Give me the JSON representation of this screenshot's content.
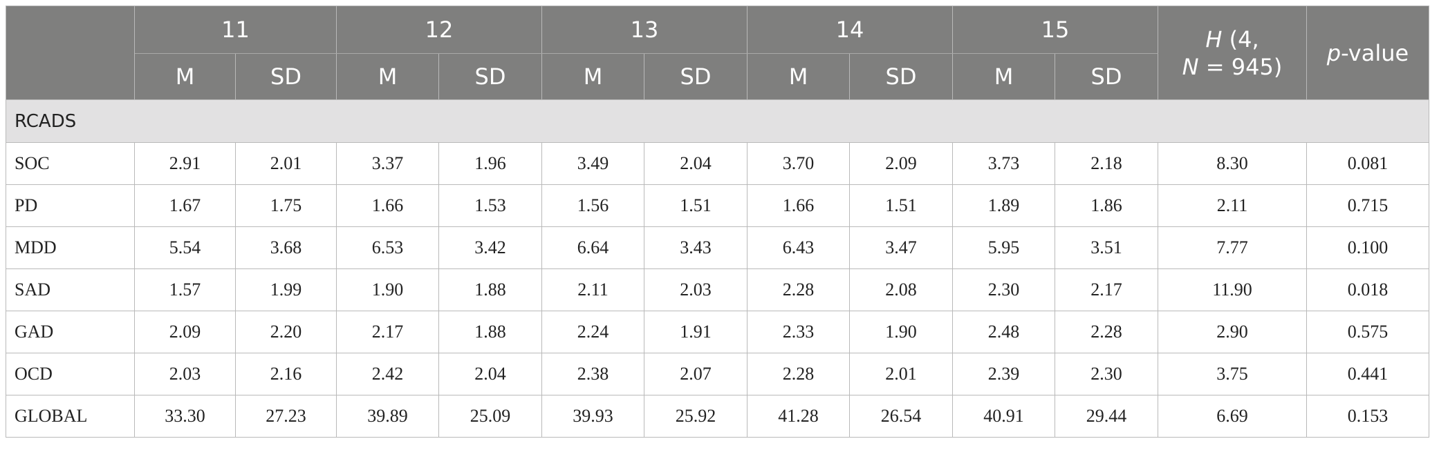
{
  "header": {
    "empty_corner": "",
    "groups": [
      "11",
      "12",
      "13",
      "14",
      "15"
    ],
    "sub": [
      "M",
      "SD"
    ],
    "h_stat": {
      "italic": "H",
      "line1_rest": " (4,",
      "n_italic": "N",
      "line2_rest": " = 945)"
    },
    "p_value": {
      "italic": "p",
      "rest": "-value"
    }
  },
  "section_label": "RCADS",
  "rows": [
    {
      "label": "SOC",
      "cells": [
        "2.91",
        "2.01",
        "3.37",
        "1.96",
        "3.49",
        "2.04",
        "3.70",
        "2.09",
        "3.73",
        "2.18",
        "8.30",
        "0.081"
      ]
    },
    {
      "label": "PD",
      "cells": [
        "1.67",
        "1.75",
        "1.66",
        "1.53",
        "1.56",
        "1.51",
        "1.66",
        "1.51",
        "1.89",
        "1.86",
        "2.11",
        "0.715"
      ]
    },
    {
      "label": "MDD",
      "cells": [
        "5.54",
        "3.68",
        "6.53",
        "3.42",
        "6.64",
        "3.43",
        "6.43",
        "3.47",
        "5.95",
        "3.51",
        "7.77",
        "0.100"
      ]
    },
    {
      "label": "SAD",
      "cells": [
        "1.57",
        "1.99",
        "1.90",
        "1.88",
        "2.11",
        "2.03",
        "2.28",
        "2.08",
        "2.30",
        "2.17",
        "11.90",
        "0.018"
      ]
    },
    {
      "label": "GAD",
      "cells": [
        "2.09",
        "2.20",
        "2.17",
        "1.88",
        "2.24",
        "1.91",
        "2.33",
        "1.90",
        "2.48",
        "2.28",
        "2.90",
        "0.575"
      ]
    },
    {
      "label": "OCD",
      "cells": [
        "2.03",
        "2.16",
        "2.42",
        "2.04",
        "2.38",
        "2.07",
        "2.28",
        "2.01",
        "2.39",
        "2.30",
        "3.75",
        "0.441"
      ]
    },
    {
      "label": "GLOBAL",
      "cells": [
        "33.30",
        "27.23",
        "39.89",
        "25.09",
        "39.93",
        "25.92",
        "41.28",
        "26.54",
        "40.91",
        "29.44",
        "6.69",
        "0.153"
      ]
    }
  ]
}
